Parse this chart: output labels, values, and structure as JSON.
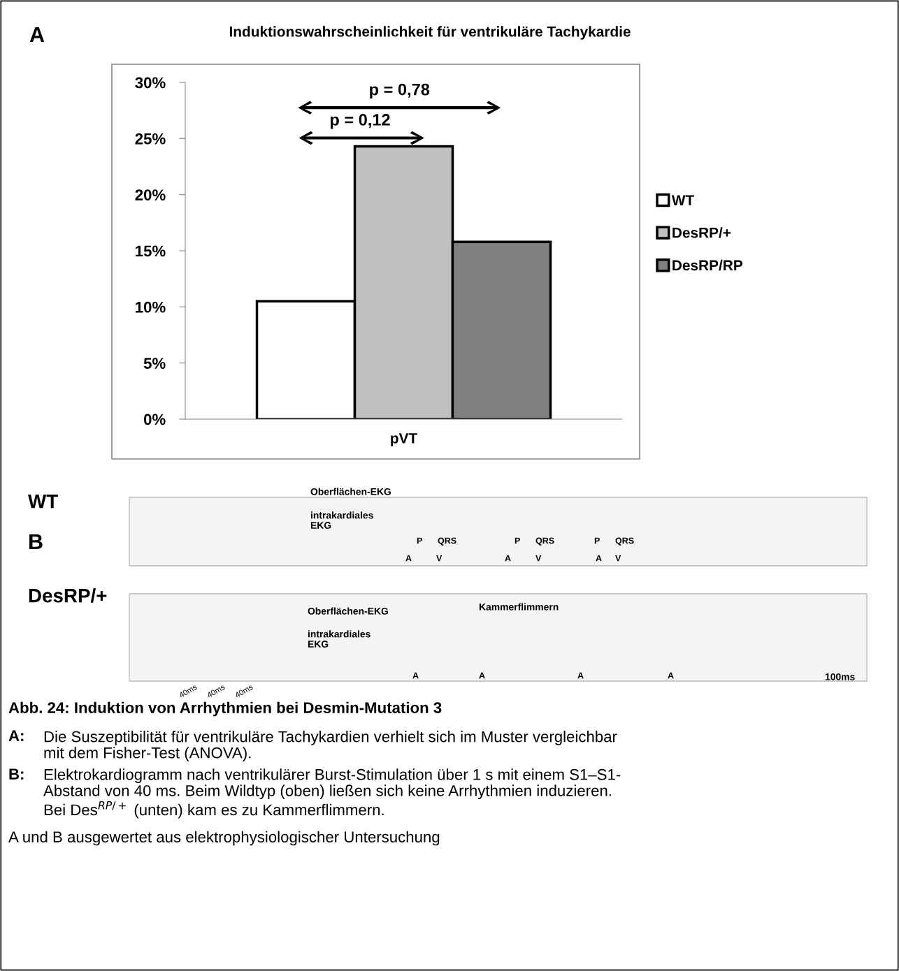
{
  "chart_data": {
    "type": "bar",
    "title": "Induktionswahrscheinlichkeit für ventrikuläre Tachykardie",
    "categories": [
      "pVT"
    ],
    "series": [
      {
        "name": "WT",
        "color": "#ffffff",
        "values": [
          10.5
        ]
      },
      {
        "name": "DesRP/+",
        "color": "#c0c0c0",
        "values": [
          24.3
        ]
      },
      {
        "name": "DesRP/RP",
        "color": "#808080",
        "values": [
          15.8
        ]
      }
    ],
    "ylim": [
      0,
      30
    ],
    "yticks": [
      {
        "value": 0,
        "label": "0%"
      },
      {
        "value": 5,
        "label": "5%"
      },
      {
        "value": 10,
        "label": "10%"
      },
      {
        "value": 15,
        "label": "15%"
      },
      {
        "value": 20,
        "label": "20%"
      },
      {
        "value": 25,
        "label": "25%"
      },
      {
        "value": 30,
        "label": "30%"
      }
    ],
    "grid": false,
    "legend": "right",
    "annotations": [
      "A",
      "p = 0,78",
      "p = 0,12",
      "WT",
      "B",
      "DesRP/+",
      "Oberflächen-EKG",
      "P",
      "QRS",
      "P",
      "QRS",
      "P",
      "QRS",
      "intrakardiales\nEKG",
      "A",
      "V",
      "A",
      "V",
      "A",
      "V",
      "Oberflächen-EKG",
      "Kammerflimmern",
      "intrakardiales\nEKG",
      "A",
      "A",
      "A",
      "A",
      "40ms",
      "40ms",
      "40ms",
      "100ms",
      "Abb. 24: Induktion von Arrhythmien bei Desmin-Mutation 3",
      "A:",
      "Die Suszeptibilität für ventrikuläre Tachykardien verhielt sich im Muster vergleichbar\nmit dem Fisher-Test (ANOVA).",
      "B:",
      "Elektrokardiogramm nach ventrikulärer Burst-Stimulation über 1 s mit einem S1–S1-\nAbstand von 40 ms. Beim Wildtyp (oben) ließen sich keine Arrhythmien induzieren.\nBei Des$^{RP/+}$ (unten) kam es zu Kammerflimmern.",
      "A und B ausgewertet aus elektrophysiologischer Untersuchung"
    ]
  }
}
